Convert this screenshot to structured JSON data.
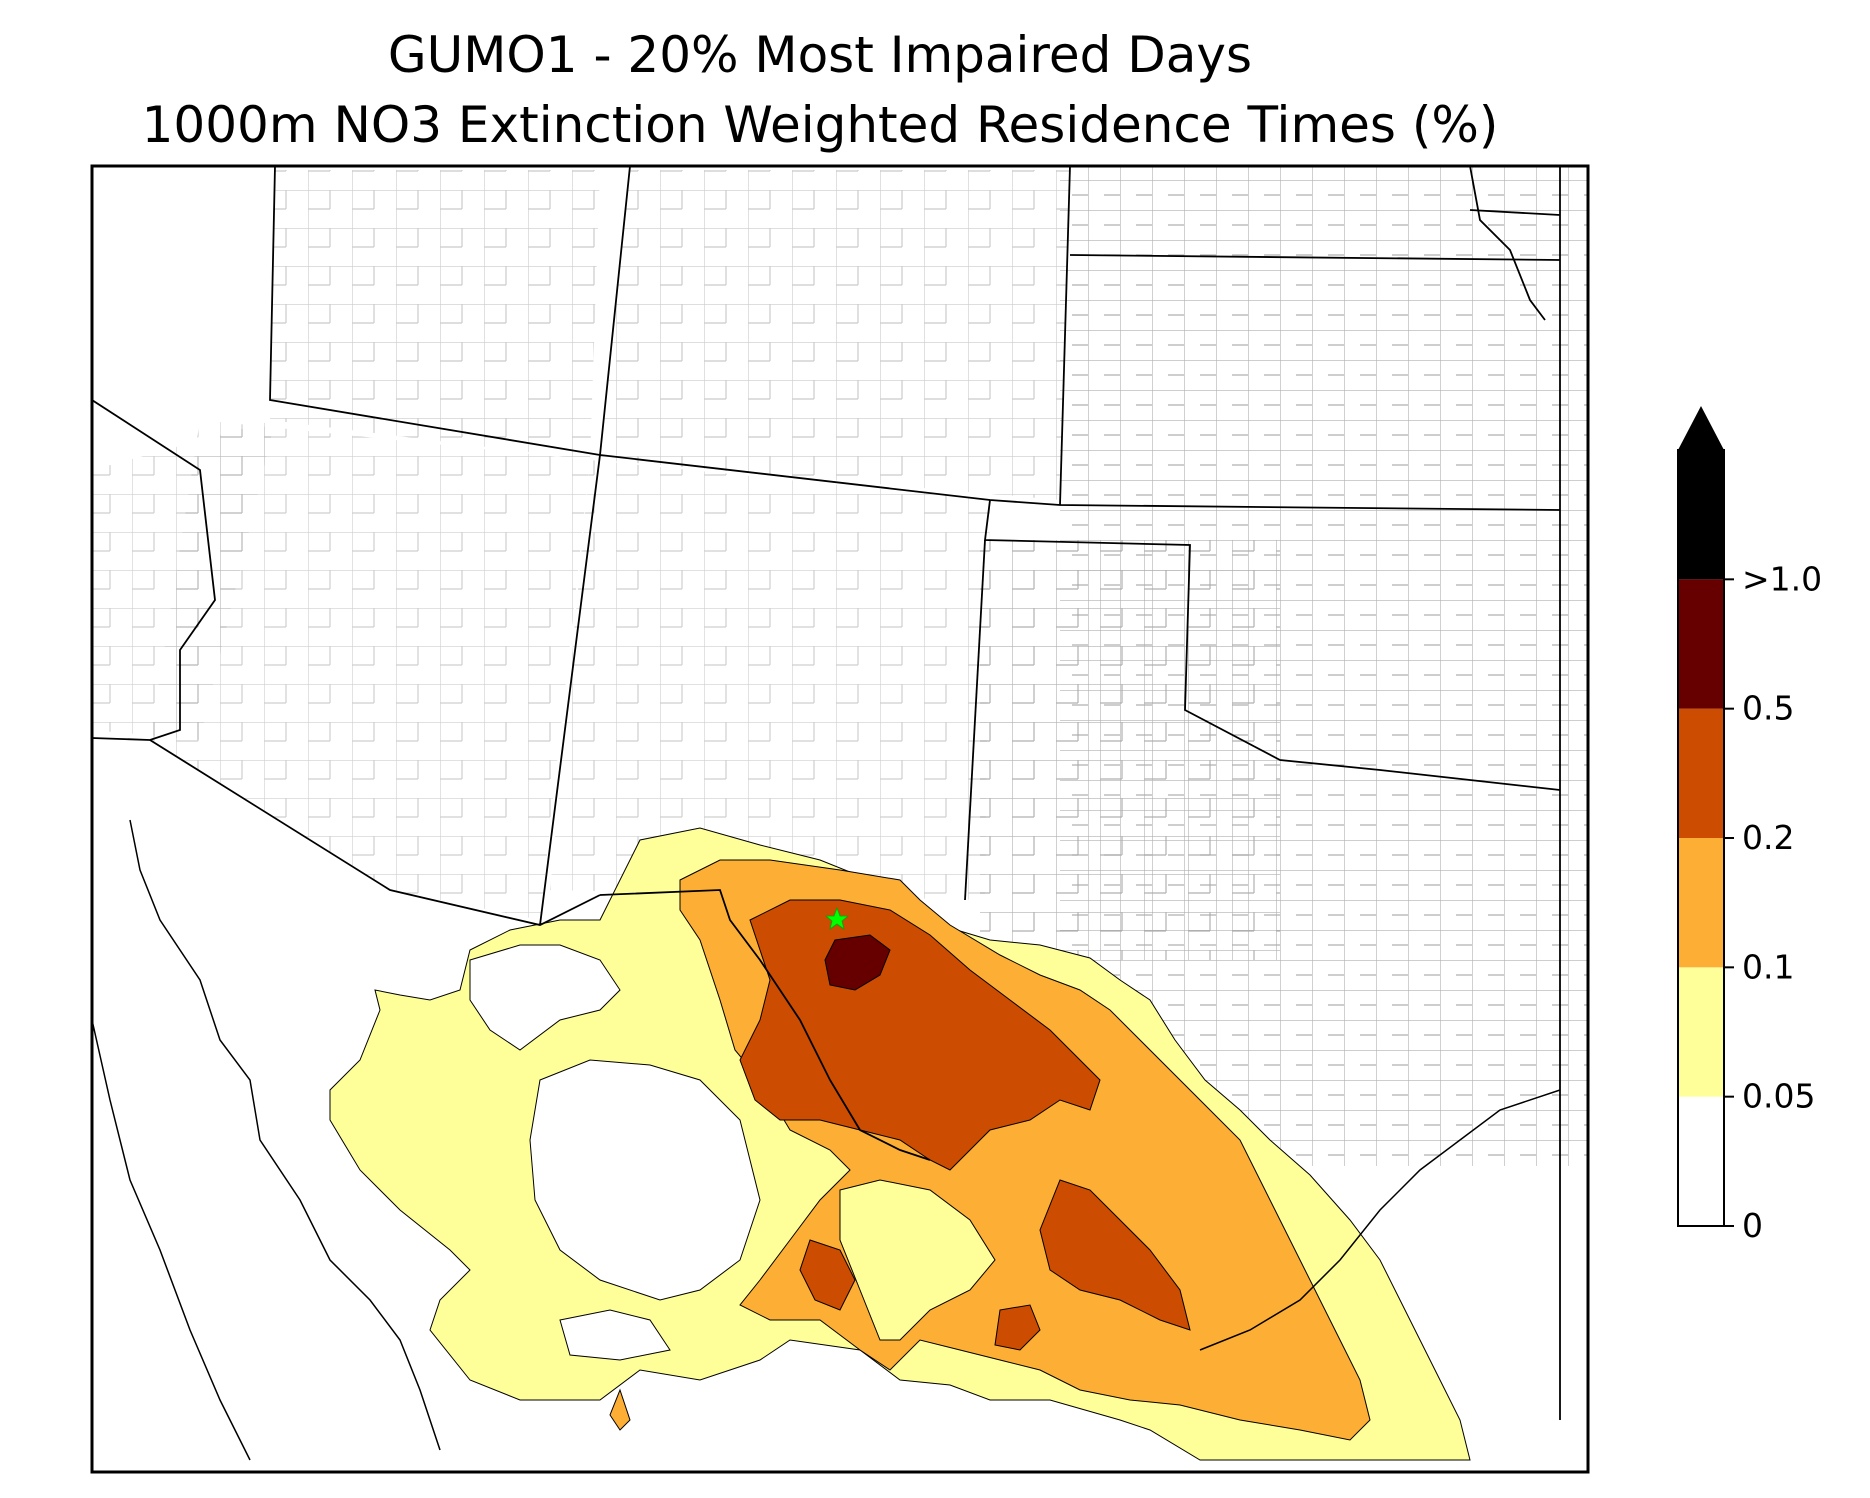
{
  "title": {
    "line1": "GUMO1 - 20% Most Impaired Days",
    "line2": "1000m NO3 Extinction Weighted Residence Times (%)"
  },
  "map": {
    "region": "Southwestern United States and northern Mexico",
    "marker_icon": "star-icon",
    "marker_color": "#00ff00",
    "state_border_color": "#000000",
    "county_border_color": "#a0a0a0"
  },
  "colorbar": {
    "extend": "max",
    "levels": [
      {
        "label": "0",
        "value": 0,
        "color": "#ffffff"
      },
      {
        "label": "0.05",
        "value": 0.05,
        "color": "#ffff99"
      },
      {
        "label": "0.1",
        "value": 0.1,
        "color": "#fdae35"
      },
      {
        "label": "0.2",
        "value": 0.2,
        "color": "#cc4c02"
      },
      {
        "label": "0.5",
        "value": 0.5,
        "color": "#660000"
      },
      {
        "label": ">1.0",
        "value": 1.0,
        "color": "#000000"
      }
    ]
  }
}
